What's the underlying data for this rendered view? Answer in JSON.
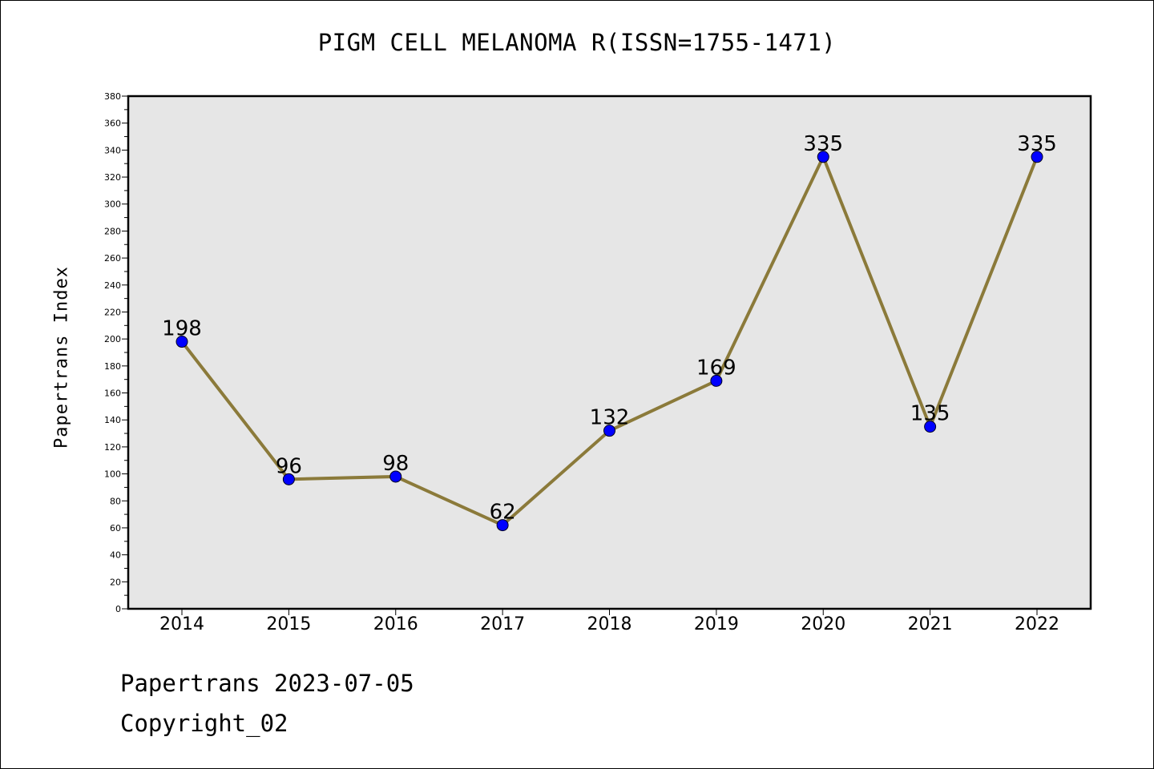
{
  "chart_data": {
    "type": "line",
    "title": "PIGM CELL MELANOMA R(ISSN=1755-1471)",
    "xlabel": "",
    "ylabel": "Papertrans Index",
    "categories": [
      "2014",
      "2015",
      "2016",
      "2017",
      "2018",
      "2019",
      "2020",
      "2021",
      "2022"
    ],
    "series": [
      {
        "values": [
          198,
          96,
          98,
          62,
          132,
          169,
          335,
          135,
          335
        ]
      }
    ],
    "ylim": [
      0,
      380
    ],
    "yticks": [
      0,
      20,
      40,
      60,
      80,
      100,
      120,
      140,
      160,
      180,
      200,
      220,
      240,
      260,
      280,
      300,
      320,
      340,
      360,
      380
    ],
    "grid": false,
    "legend": "none",
    "colors": {
      "line": "#8B7A3A",
      "marker": "#0000FF",
      "plot_background": "#E6E6E6"
    }
  },
  "footer": {
    "date_line": "Papertrans 2023-07-05",
    "copyright_line": "Copyright_02"
  }
}
